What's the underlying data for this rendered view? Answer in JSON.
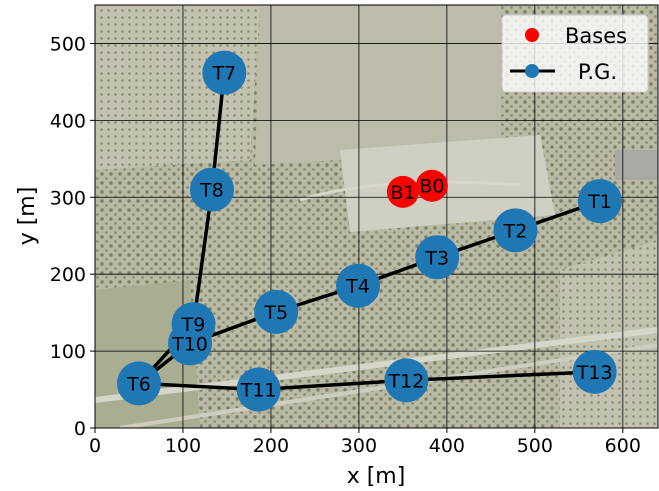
{
  "chart_data": {
    "type": "scatter",
    "xlabel": "x [m]",
    "ylabel": "y [m]",
    "xlim": [
      0,
      640
    ],
    "ylim": [
      0,
      550
    ],
    "xticks": [
      0,
      100,
      200,
      300,
      400,
      500,
      600
    ],
    "yticks": [
      0,
      100,
      200,
      300,
      400,
      500
    ],
    "grid": true,
    "background": "aerial-photo-orchards",
    "legend": {
      "placement": "top-right",
      "entries": [
        {
          "label": "Bases",
          "marker": "dot",
          "color": "#ff0000"
        },
        {
          "label": "P.G.",
          "marker": "line-dot",
          "color": "#1f77b4"
        }
      ]
    },
    "series": [
      {
        "name": "Bases",
        "color": "#ff0000",
        "points": [
          {
            "label": "B0",
            "x": 383,
            "y": 315
          },
          {
            "label": "B1",
            "x": 350,
            "y": 307
          }
        ]
      },
      {
        "name": "P.G.",
        "color": "#1f77b4",
        "points": [
          {
            "label": "T1",
            "x": 574,
            "y": 295
          },
          {
            "label": "T2",
            "x": 478,
            "y": 257
          },
          {
            "label": "T3",
            "x": 389,
            "y": 222
          },
          {
            "label": "T4",
            "x": 299,
            "y": 185
          },
          {
            "label": "T5",
            "x": 206,
            "y": 151
          },
          {
            "label": "T6",
            "x": 50,
            "y": 58
          },
          {
            "label": "T7",
            "x": 147,
            "y": 462
          },
          {
            "label": "T8",
            "x": 133,
            "y": 310
          },
          {
            "label": "T9",
            "x": 112,
            "y": 135
          },
          {
            "label": "T10",
            "x": 108,
            "y": 110
          },
          {
            "label": "T11",
            "x": 186,
            "y": 50
          },
          {
            "label": "T12",
            "x": 354,
            "y": 62
          },
          {
            "label": "T13",
            "x": 568,
            "y": 73
          }
        ],
        "paths": [
          [
            "T1",
            "T2",
            "T3",
            "T4",
            "T5",
            "T10",
            "T6"
          ],
          [
            "T7",
            "T8",
            "T9",
            "T6"
          ],
          [
            "T6",
            "T11",
            "T12",
            "T13"
          ]
        ]
      }
    ]
  }
}
